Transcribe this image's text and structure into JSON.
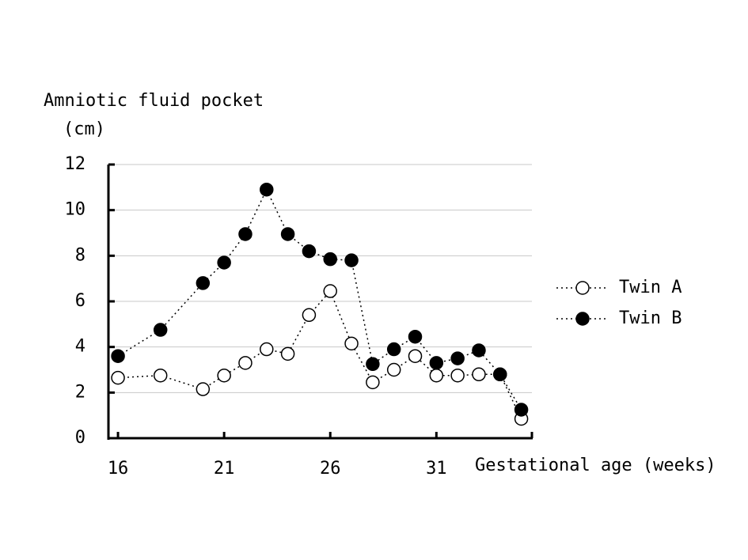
{
  "chart_data": {
    "type": "line",
    "y_label": "Amniotic fluid pocket",
    "y_unit": "(cm)",
    "x_label": "Gestational age (weeks)",
    "x": [
      16,
      18,
      20,
      21,
      22,
      23,
      24,
      25,
      26,
      27,
      28,
      29,
      30,
      31,
      32,
      33,
      34,
      35
    ],
    "series": [
      {
        "name": "Twin A",
        "color": "#ffffff",
        "values": [
          2.65,
          2.75,
          2.15,
          2.75,
          3.3,
          3.9,
          3.7,
          5.4,
          6.45,
          4.15,
          2.45,
          3.0,
          3.6,
          2.75,
          2.75,
          2.8,
          2.8,
          0.85
        ]
      },
      {
        "name": "Twin B",
        "color": "#000000",
        "values": [
          3.6,
          4.75,
          6.8,
          7.7,
          8.95,
          10.9,
          8.95,
          8.2,
          7.85,
          7.8,
          3.25,
          3.9,
          4.45,
          3.3,
          3.5,
          3.85,
          2.8,
          1.25
        ]
      }
    ],
    "xlim": [
      15.55,
      35.5
    ],
    "xticks": [
      16,
      21,
      26,
      31
    ],
    "ylim": [
      0,
      12
    ],
    "yticks": [
      0,
      2,
      4,
      6,
      8,
      10,
      12
    ],
    "grid": true,
    "legend": "right"
  }
}
